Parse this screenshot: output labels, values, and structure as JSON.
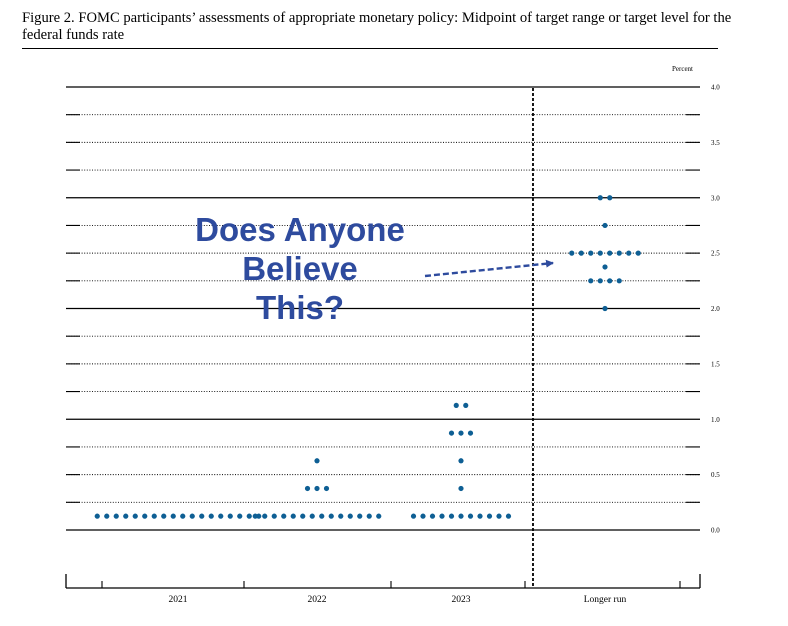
{
  "figure": {
    "title": "Figure 2.  FOMC participants’ assessments of appropriate monetary policy:  Midpoint of target range or target level for the federal funds rate"
  },
  "annotation": {
    "line1": "Does Anyone",
    "line2": "Believe",
    "line3": "This?",
    "color": "#2e4b9e"
  },
  "chart_data": {
    "type": "scatter",
    "unit_label": "Percent",
    "categories": [
      "2021",
      "2022",
      "2023",
      "Longer run"
    ],
    "ylim": [
      -0.375,
      4.0
    ],
    "y_ticks": [
      {
        "value": 4.0,
        "label": "4.0"
      },
      {
        "value": 3.5,
        "label": "3.5"
      },
      {
        "value": 3.0,
        "label": "3.0"
      },
      {
        "value": 2.5,
        "label": "2.5"
      },
      {
        "value": 2.0,
        "label": "2.0"
      },
      {
        "value": 1.5,
        "label": "1.5"
      },
      {
        "value": 1.0,
        "label": "1.0"
      },
      {
        "value": 0.5,
        "label": "0.5"
      },
      {
        "value": 0.0,
        "label": "0.0"
      }
    ],
    "grid": true,
    "dot_color": "#0e5f94",
    "series": [
      {
        "category": "2021",
        "points": [
          {
            "y": 0.125,
            "count": 18
          }
        ]
      },
      {
        "category": "2022",
        "points": [
          {
            "y": 0.625,
            "count": 1
          },
          {
            "y": 0.375,
            "count": 3
          },
          {
            "y": 0.125,
            "count": 14
          }
        ]
      },
      {
        "category": "2023",
        "points": [
          {
            "y": 1.125,
            "count": 2
          },
          {
            "y": 0.875,
            "count": 3
          },
          {
            "y": 0.625,
            "count": 1
          },
          {
            "y": 0.375,
            "count": 1
          },
          {
            "y": 0.125,
            "count": 11
          }
        ]
      },
      {
        "category": "Longer run",
        "points": [
          {
            "y": 3.0,
            "count": 2
          },
          {
            "y": 2.75,
            "count": 1
          },
          {
            "y": 2.5,
            "count": 8
          },
          {
            "y": 2.375,
            "count": 1
          },
          {
            "y": 2.25,
            "count": 4
          },
          {
            "y": 2.0,
            "count": 1
          }
        ]
      }
    ]
  }
}
